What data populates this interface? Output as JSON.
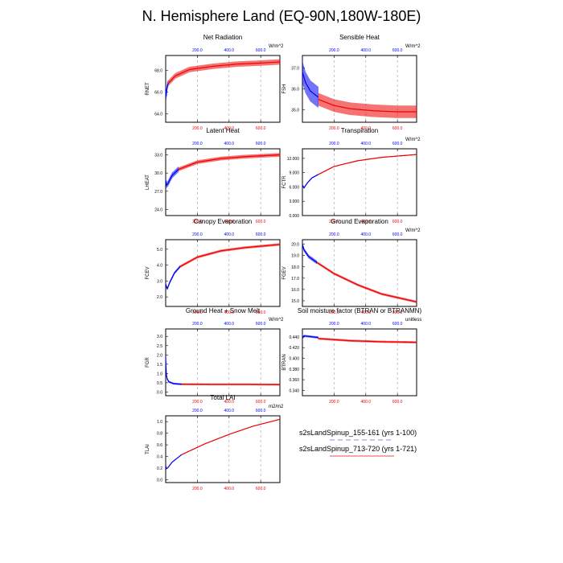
{
  "title": "N. Hemisphere Land (EQ-90N,180W-180E)",
  "colors": {
    "run1": "#0000ee",
    "run2": "#ee0000",
    "grid": "#b0b0b0"
  },
  "legend": [
    {
      "label": "s2sLandSpinup_155-161 (yrs 1-100)",
      "color": "#8a8ad8",
      "style": "dashed"
    },
    {
      "label": "s2sLandSpinup_713-720 (yrs 1-721)",
      "color": "#e05050",
      "style": "solid"
    }
  ],
  "chart_data": [
    {
      "type": "line",
      "title": "Net Radiation",
      "ylabel": "RNET",
      "units": "W/m^2",
      "top_ticks": [
        "200.0",
        "400.0",
        "600.0"
      ],
      "bottom_ticks": [
        "200.0",
        "400.0",
        "600.0"
      ],
      "yticks": [
        "64.0",
        "66.0",
        "68.0"
      ],
      "ytick_values": [
        64,
        66,
        68
      ],
      "ylim": [
        63.2,
        69.4
      ],
      "x_run1": [
        0,
        1,
        3,
        8,
        15
      ],
      "y_run1": [
        66.2,
        65.9,
        65.6,
        66.4,
        66.8
      ],
      "x_run2": [
        15,
        60,
        150,
        300,
        450,
        600,
        721
      ],
      "y_run2": [
        66.8,
        67.5,
        68.1,
        68.4,
        68.6,
        68.7,
        68.8
      ],
      "amp_run1": 0.6,
      "amp_run2": 0.5
    },
    {
      "type": "line",
      "title": "Sensible Heat",
      "ylabel": "FSH",
      "units": "W/m^2",
      "top_ticks": [
        "200.0",
        "400.0",
        "600.0"
      ],
      "bottom_ticks": [
        "200.0",
        "400.0",
        "600.0"
      ],
      "yticks": [
        "35.0",
        "36.0",
        "37.0"
      ],
      "ytick_values": [
        35,
        36,
        37
      ],
      "ylim": [
        34.4,
        37.6
      ],
      "x_run1": [
        0,
        20,
        50,
        100
      ],
      "y_run1": [
        36.8,
        36.3,
        35.9,
        35.6
      ],
      "x_run2": [
        100,
        200,
        300,
        450,
        600,
        721
      ],
      "y_run2": [
        35.5,
        35.2,
        35.05,
        34.95,
        34.9,
        34.9
      ],
      "amp_run1": 1.0,
      "amp_run2": 0.6
    },
    {
      "type": "line",
      "title": "Latent Heat",
      "ylabel": "LHEAT",
      "units": "",
      "top_ticks": [
        "200.0",
        "400.0",
        "600.0"
      ],
      "bottom_ticks": [
        "200.0",
        "400.0",
        "600.0"
      ],
      "yticks": [
        "24.0",
        "27.0",
        "30.0",
        "33.0"
      ],
      "ytick_values": [
        24,
        27,
        30,
        33
      ],
      "ylim": [
        23,
        34
      ],
      "x_run1": [
        0,
        5,
        15,
        40,
        80
      ],
      "y_run1": [
        28.8,
        28.0,
        28.3,
        29.6,
        30.6
      ],
      "x_run2": [
        80,
        200,
        350,
        500,
        721
      ],
      "y_run2": [
        30.6,
        31.8,
        32.4,
        32.7,
        33.0
      ],
      "amp_run1": 0.9,
      "amp_run2": 0.6
    },
    {
      "type": "line",
      "title": "Transpiration",
      "ylabel": "FCTR",
      "units": "W/m^2",
      "top_ticks": [
        "200.0",
        "400.0",
        "600.0"
      ],
      "bottom_ticks": [
        "200.0",
        "400.0",
        "600.0"
      ],
      "yticks": [
        "0.000",
        "3.000",
        "6.000",
        "9.000",
        "12.000"
      ],
      "ytick_values": [
        0,
        3,
        6,
        9,
        12
      ],
      "ylim": [
        0,
        14
      ],
      "x_run1": [
        0,
        10,
        30,
        60,
        100
      ],
      "y_run1": [
        6.4,
        5.8,
        6.8,
        7.9,
        8.6
      ],
      "x_run2": [
        100,
        200,
        350,
        500,
        721
      ],
      "y_run2": [
        8.6,
        10.3,
        11.5,
        12.2,
        12.8
      ],
      "amp_run1": 0.2,
      "amp_run2": 0.15
    },
    {
      "type": "line",
      "title": "Canopy Evaporation",
      "ylabel": "FCEV",
      "units": "",
      "top_ticks": [
        "200.0",
        "400.0",
        "600.0"
      ],
      "bottom_ticks": [
        "200.0",
        "400.0",
        "600.0"
      ],
      "yticks": [
        "2.0",
        "3.0",
        "4.0",
        "5.0"
      ],
      "ytick_values": [
        2,
        3,
        4,
        5
      ],
      "ylim": [
        1.4,
        5.6
      ],
      "x_run1": [
        0,
        10,
        25,
        55,
        90
      ],
      "y_run1": [
        2.8,
        2.5,
        2.9,
        3.5,
        3.9
      ],
      "x_run2": [
        90,
        200,
        350,
        500,
        721
      ],
      "y_run2": [
        3.9,
        4.5,
        4.9,
        5.1,
        5.3
      ],
      "amp_run1": 0.15,
      "amp_run2": 0.15
    },
    {
      "type": "line",
      "title": "Ground Evaporation",
      "ylabel": "FGEV",
      "units": "W/m^2",
      "top_ticks": [
        "200.0",
        "400.0",
        "600.0"
      ],
      "bottom_ticks": [
        "200.0",
        "400.0",
        "600.0"
      ],
      "yticks": [
        "15.0",
        "16.0",
        "17.0",
        "18.0",
        "19.0",
        "20.0"
      ],
      "ytick_values": [
        15,
        16,
        17,
        18,
        19,
        20
      ],
      "ylim": [
        14.5,
        20.4
      ],
      "x_run1": [
        0,
        10,
        40,
        90
      ],
      "y_run1": [
        20.0,
        19.5,
        18.9,
        18.4
      ],
      "x_run2": [
        90,
        200,
        350,
        500,
        721
      ],
      "y_run2": [
        18.4,
        17.4,
        16.4,
        15.6,
        14.9
      ],
      "amp_run1": 0.3,
      "amp_run2": 0.2
    },
    {
      "type": "line",
      "title": "Ground Heat + Snow Melt",
      "ylabel": "FGR",
      "units": "W/m^2",
      "top_ticks": [
        "200.0",
        "400.0",
        "600.0"
      ],
      "bottom_ticks": [
        "200.0",
        "400.0",
        "600.0"
      ],
      "yticks": [
        "0.0",
        "0.5",
        "1.0",
        "1.5",
        "2.0",
        "2.5",
        "3.0"
      ],
      "ytick_values": [
        0,
        0.5,
        1,
        1.5,
        2,
        2.5,
        3
      ],
      "ylim": [
        -0.2,
        3.4
      ],
      "x_run1": [
        0,
        2,
        5,
        10,
        20,
        50,
        100
      ],
      "y_run1": [
        1.9,
        1.3,
        0.9,
        0.7,
        0.55,
        0.45,
        0.42
      ],
      "x_run2": [
        100,
        300,
        500,
        721
      ],
      "y_run2": [
        0.42,
        0.41,
        0.41,
        0.4
      ],
      "amp_run1": 0.1,
      "amp_run2": 0.1
    },
    {
      "type": "line",
      "title": "Soil moisture factor (BTRAN or BTRANMN)",
      "ylabel": "BTRAN",
      "units": "unitless",
      "top_ticks": [
        "200.0",
        "400.0",
        "600.0"
      ],
      "bottom_ticks": [
        "200.0",
        "400.0",
        "600.0"
      ],
      "yticks": [
        "0.340",
        "0.360",
        "0.380",
        "0.400",
        "0.420",
        "0.440"
      ],
      "ytick_values": [
        0.34,
        0.36,
        0.38,
        0.4,
        0.42,
        0.44
      ],
      "ylim": [
        0.33,
        0.455
      ],
      "x_run1": [
        0,
        10,
        40,
        100
      ],
      "y_run1": [
        0.438,
        0.442,
        0.441,
        0.439
      ],
      "x_run2": [
        100,
        300,
        500,
        721
      ],
      "y_run2": [
        0.437,
        0.433,
        0.431,
        0.43
      ],
      "amp_run1": 0.004,
      "amp_run2": 0.004
    },
    {
      "type": "line",
      "title": "Total LAI",
      "ylabel": "TLAI",
      "units": "m2/m2",
      "top_ticks": [
        "200.0",
        "400.0",
        "600.0"
      ],
      "bottom_ticks": [
        "200.0",
        "400.0",
        "600.0"
      ],
      "yticks": [
        "0.0",
        "0.2",
        "0.4",
        "0.6",
        "0.8",
        "1.0"
      ],
      "ytick_values": [
        0,
        0.2,
        0.4,
        0.6,
        0.8,
        1.0
      ],
      "ylim": [
        -0.05,
        1.1
      ],
      "x_run1": [
        0,
        5,
        15,
        40,
        100
      ],
      "y_run1": [
        0.24,
        0.19,
        0.21,
        0.3,
        0.43
      ],
      "x_run2": [
        100,
        250,
        400,
        550,
        721
      ],
      "y_run2": [
        0.43,
        0.62,
        0.78,
        0.92,
        1.04
      ],
      "amp_run1": 0.008,
      "amp_run2": 0.005
    }
  ]
}
